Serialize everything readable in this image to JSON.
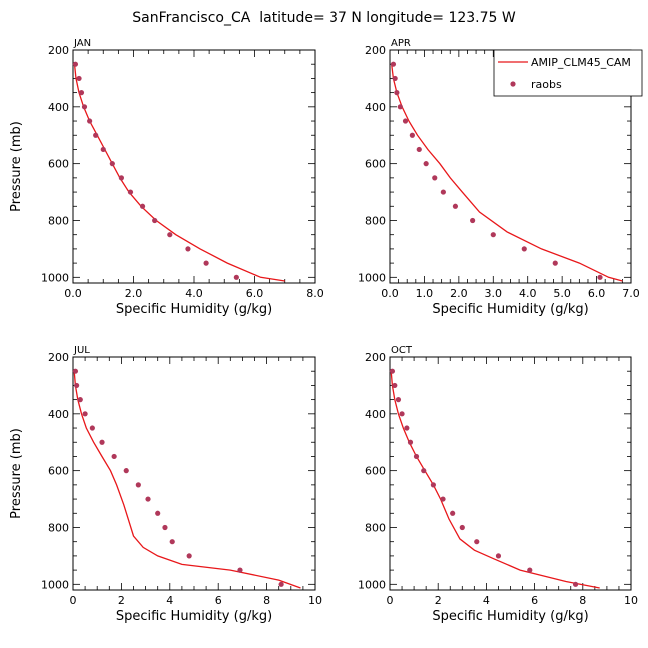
{
  "title": "SanFrancisco_CA  latitude= 37 N longitude= 123.75 W",
  "legend": {
    "position": "top-right of APR panel",
    "model_label": "AMIP_CLM45_CAM",
    "obs_label": "raobs",
    "model_color": "#e8171a",
    "obs_color": "#b0385a"
  },
  "chart_data": [
    {
      "type": "line",
      "panel": "JAN",
      "xlabel": "Specific Humidity (g/kg)",
      "ylabel": "Pressure (mb)",
      "xlim": [
        0,
        8
      ],
      "ylim": [
        1020,
        200
      ],
      "xticks": [
        0,
        2,
        4,
        6,
        8
      ],
      "xtick_labels": [
        "0.0",
        "2.0",
        "4.0",
        "6.0",
        "8.0"
      ],
      "yticks": [
        200,
        400,
        600,
        800,
        1000
      ],
      "series": [
        {
          "name": "AMIP_CLM45_CAM",
          "style": "line",
          "x": [
            0.05,
            0.1,
            0.2,
            0.35,
            0.55,
            0.8,
            1.05,
            1.3,
            1.55,
            1.85,
            2.25,
            2.75,
            3.4,
            4.2,
            5.1,
            6.2,
            7.0
          ],
          "y": [
            250,
            300,
            350,
            400,
            450,
            500,
            550,
            600,
            650,
            700,
            750,
            800,
            850,
            900,
            950,
            1000,
            1013
          ]
        },
        {
          "name": "raobs",
          "style": "markers",
          "x": [
            0.08,
            0.2,
            0.28,
            0.38,
            0.55,
            0.75,
            1.0,
            1.3,
            1.6,
            1.9,
            2.3,
            2.7,
            3.2,
            3.8,
            4.4,
            5.4
          ],
          "y": [
            250,
            300,
            350,
            400,
            450,
            500,
            550,
            600,
            650,
            700,
            750,
            800,
            850,
            900,
            950,
            1000
          ]
        }
      ]
    },
    {
      "type": "line",
      "panel": "APR",
      "xlabel": "Specific Humidity (g/kg)",
      "ylabel": "",
      "xlim": [
        0,
        7
      ],
      "ylim": [
        1020,
        200
      ],
      "xticks": [
        0,
        1,
        2,
        3,
        4,
        5,
        6,
        7
      ],
      "xtick_labels": [
        "0.0",
        "1.0",
        "2.0",
        "3.0",
        "4.0",
        "5.0",
        "6.0",
        "7.0"
      ],
      "yticks": [
        200,
        400,
        600,
        800,
        1000
      ],
      "series": [
        {
          "name": "AMIP_CLM45_CAM",
          "style": "line",
          "x": [
            0.05,
            0.1,
            0.2,
            0.35,
            0.55,
            0.8,
            1.1,
            1.45,
            1.75,
            2.1,
            2.6,
            3.4,
            4.4,
            5.5,
            6.35,
            6.75
          ],
          "y": [
            250,
            300,
            350,
            400,
            450,
            500,
            550,
            600,
            650,
            700,
            770,
            840,
            900,
            950,
            1000,
            1013
          ]
        },
        {
          "name": "raobs",
          "style": "markers",
          "x": [
            0.1,
            0.15,
            0.2,
            0.3,
            0.45,
            0.65,
            0.85,
            1.05,
            1.3,
            1.55,
            1.9,
            2.4,
            3.0,
            3.9,
            4.8,
            6.1
          ],
          "y": [
            250,
            300,
            350,
            400,
            450,
            500,
            550,
            600,
            650,
            700,
            750,
            800,
            850,
            900,
            950,
            1000
          ]
        }
      ]
    },
    {
      "type": "line",
      "panel": "JUL",
      "xlabel": "Specific Humidity (g/kg)",
      "ylabel": "Pressure (mb)",
      "xlim": [
        0,
        10
      ],
      "ylim": [
        1020,
        200
      ],
      "xticks": [
        0,
        2,
        4,
        6,
        8,
        10
      ],
      "xtick_labels": [
        "0",
        "2",
        "4",
        "6",
        "8",
        "10"
      ],
      "yticks": [
        200,
        400,
        600,
        800,
        1000
      ],
      "series": [
        {
          "name": "AMIP_CLM45_CAM",
          "style": "line",
          "x": [
            0.05,
            0.1,
            0.2,
            0.35,
            0.55,
            0.85,
            1.2,
            1.55,
            1.8,
            2.1,
            2.5,
            2.9,
            3.5,
            4.5,
            6.5,
            8.5,
            9.4
          ],
          "y": [
            250,
            300,
            350,
            400,
            450,
            500,
            550,
            600,
            650,
            720,
            830,
            870,
            900,
            930,
            950,
            985,
            1013
          ]
        },
        {
          "name": "raobs",
          "style": "markers",
          "x": [
            0.1,
            0.15,
            0.3,
            0.5,
            0.8,
            1.2,
            1.7,
            2.2,
            2.7,
            3.1,
            3.5,
            3.8,
            4.1,
            4.8,
            6.9,
            8.6
          ],
          "y": [
            250,
            300,
            350,
            400,
            450,
            500,
            550,
            600,
            650,
            700,
            750,
            800,
            850,
            900,
            950,
            1000
          ]
        }
      ]
    },
    {
      "type": "line",
      "panel": "OCT",
      "xlabel": "Specific Humidity (g/kg)",
      "ylabel": "",
      "xlim": [
        0,
        10
      ],
      "ylim": [
        1020,
        200
      ],
      "xticks": [
        0,
        2,
        4,
        6,
        8,
        10
      ],
      "xtick_labels": [
        "0",
        "2",
        "4",
        "6",
        "8",
        "10"
      ],
      "yticks": [
        200,
        400,
        600,
        800,
        1000
      ],
      "series": [
        {
          "name": "AMIP_CLM45_CAM",
          "style": "line",
          "x": [
            0.05,
            0.1,
            0.2,
            0.35,
            0.55,
            0.8,
            1.1,
            1.45,
            1.8,
            2.1,
            2.45,
            2.9,
            3.5,
            4.3,
            5.4,
            7.3,
            8.7
          ],
          "y": [
            250,
            300,
            350,
            400,
            450,
            500,
            550,
            600,
            650,
            700,
            770,
            840,
            880,
            910,
            950,
            990,
            1013
          ]
        },
        {
          "name": "raobs",
          "style": "markers",
          "x": [
            0.1,
            0.2,
            0.35,
            0.5,
            0.7,
            0.85,
            1.1,
            1.4,
            1.8,
            2.2,
            2.6,
            3.0,
            3.6,
            4.5,
            5.8,
            7.7
          ],
          "y": [
            250,
            300,
            350,
            400,
            450,
            500,
            550,
            600,
            650,
            700,
            750,
            800,
            850,
            900,
            950,
            1000
          ]
        }
      ]
    }
  ]
}
